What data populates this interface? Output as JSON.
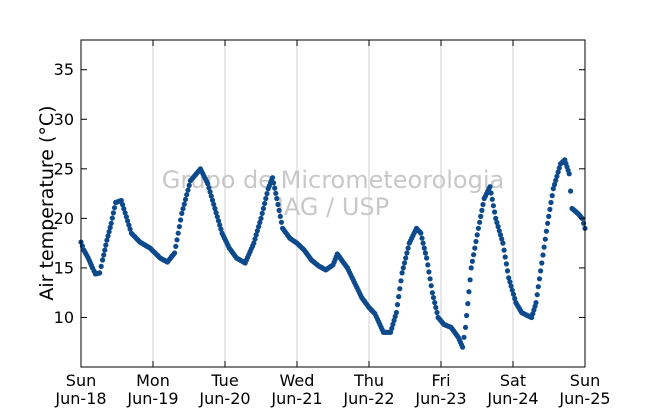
{
  "chart_data": {
    "type": "scatter",
    "title": "",
    "ylabel": "Air temperature (°C)",
    "xlabel": "",
    "ylim": [
      5,
      38
    ],
    "xlim": [
      0,
      7
    ],
    "yticks": [
      10,
      15,
      20,
      25,
      30,
      35
    ],
    "xticks": [
      {
        "x": 0,
        "day": "Sun",
        "date": "Jun-18"
      },
      {
        "x": 1,
        "day": "Mon",
        "date": "Jun-19"
      },
      {
        "x": 2,
        "day": "Tue",
        "date": "Jun-20"
      },
      {
        "x": 3,
        "day": "Wed",
        "date": "Jun-21"
      },
      {
        "x": 4,
        "day": "Thu",
        "date": "Jun-22"
      },
      {
        "x": 5,
        "day": "Fri",
        "date": "Jun-23"
      },
      {
        "x": 6,
        "day": "Sat",
        "date": "Jun-24"
      },
      {
        "x": 7,
        "day": "Sun",
        "date": "Jun-25"
      }
    ],
    "grid": "vertical",
    "marker_color": "#0d4a8c",
    "series": [
      {
        "points": [
          [
            0.0,
            17.6
          ],
          [
            0.04,
            16.8
          ],
          [
            0.1,
            16.0
          ],
          [
            0.16,
            15.0
          ],
          [
            0.2,
            14.4
          ],
          [
            0.26,
            14.5
          ],
          [
            0.3,
            15.8
          ],
          [
            0.36,
            17.8
          ],
          [
            0.42,
            19.5
          ],
          [
            0.48,
            21.6
          ],
          [
            0.56,
            21.8
          ],
          [
            0.7,
            18.5
          ],
          [
            0.82,
            17.6
          ],
          [
            0.96,
            17.0
          ],
          [
            1.1,
            16.0
          ],
          [
            1.2,
            15.6
          ],
          [
            1.3,
            16.5
          ],
          [
            1.4,
            20.5
          ],
          [
            1.52,
            23.8
          ],
          [
            1.66,
            25.0
          ],
          [
            1.76,
            23.5
          ],
          [
            1.86,
            21.0
          ],
          [
            1.96,
            18.5
          ],
          [
            2.06,
            17.0
          ],
          [
            2.16,
            16.0
          ],
          [
            2.28,
            15.5
          ],
          [
            2.4,
            17.5
          ],
          [
            2.5,
            20.0
          ],
          [
            2.6,
            23.0
          ],
          [
            2.66,
            24.1
          ],
          [
            2.72,
            22.0
          ],
          [
            2.8,
            19.0
          ],
          [
            2.9,
            18.0
          ],
          [
            3.0,
            17.5
          ],
          [
            3.1,
            16.8
          ],
          [
            3.2,
            15.8
          ],
          [
            3.3,
            15.2
          ],
          [
            3.4,
            14.8
          ],
          [
            3.5,
            15.3
          ],
          [
            3.56,
            16.4
          ],
          [
            3.62,
            15.8
          ],
          [
            3.7,
            15.0
          ],
          [
            3.8,
            13.5
          ],
          [
            3.9,
            12.0
          ],
          [
            4.0,
            11.0
          ],
          [
            4.08,
            10.4
          ],
          [
            4.12,
            9.8
          ],
          [
            4.2,
            8.5
          ],
          [
            4.3,
            8.5
          ],
          [
            4.38,
            10.5
          ],
          [
            4.46,
            14.5
          ],
          [
            4.56,
            17.5
          ],
          [
            4.66,
            19.0
          ],
          [
            4.72,
            18.5
          ],
          [
            4.8,
            16.0
          ],
          [
            4.88,
            12.5
          ],
          [
            4.96,
            10.0
          ],
          [
            5.04,
            9.3
          ],
          [
            5.14,
            9.0
          ],
          [
            5.24,
            8.0
          ],
          [
            5.3,
            7.0
          ],
          [
            5.34,
            9.0
          ],
          [
            5.42,
            15.0
          ],
          [
            5.52,
            19.0
          ],
          [
            5.6,
            22.0
          ],
          [
            5.68,
            23.2
          ],
          [
            5.76,
            20.0
          ],
          [
            5.86,
            17.5
          ],
          [
            5.94,
            14.0
          ],
          [
            6.04,
            11.5
          ],
          [
            6.12,
            10.5
          ],
          [
            6.2,
            10.2
          ],
          [
            6.26,
            10.0
          ],
          [
            6.32,
            11.5
          ],
          [
            6.4,
            15.5
          ],
          [
            6.48,
            19.5
          ],
          [
            6.56,
            23.0
          ],
          [
            6.66,
            25.5
          ],
          [
            6.72,
            25.9
          ],
          [
            6.78,
            24.5
          ],
          [
            6.82,
            21.0
          ],
          [
            6.9,
            20.5
          ],
          [
            6.96,
            20.0
          ],
          [
            7.0,
            19.0
          ]
        ]
      }
    ],
    "watermark": [
      "Grupo de Micrometeorologia",
      "IAG / USP"
    ]
  }
}
